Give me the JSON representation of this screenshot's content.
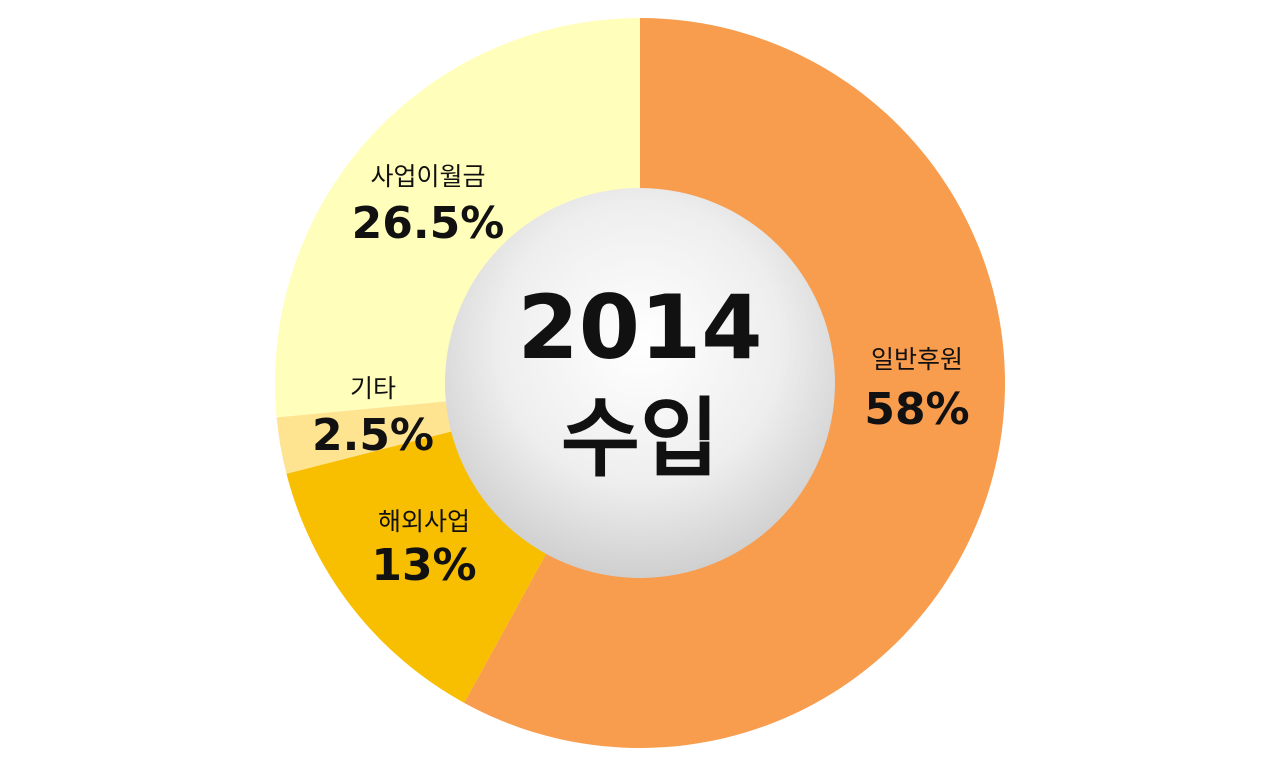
{
  "chart_data": {
    "type": "pie",
    "center_label": {
      "year": "2014",
      "caption": "수입"
    },
    "slices": [
      {
        "name": "일반후원",
        "value": 58,
        "display": "58%",
        "color": "#F89C4E"
      },
      {
        "name": "해외사업",
        "value": 13,
        "display": "13%",
        "color": "#F8BE00"
      },
      {
        "name": "기타",
        "value": 2.5,
        "display": "2.5%",
        "color": "#FEE390"
      },
      {
        "name": "사업이월금",
        "value": 26.5,
        "display": "26.5%",
        "color": "#FFFEBB"
      }
    ]
  }
}
